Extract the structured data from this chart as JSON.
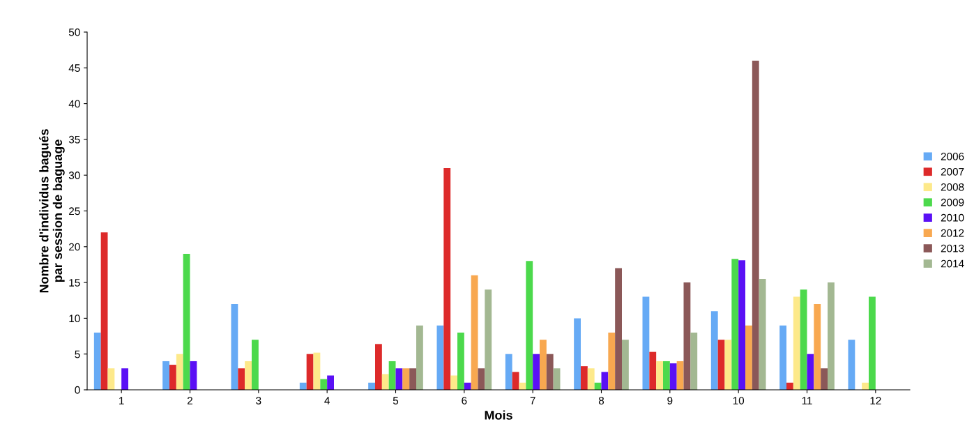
{
  "chart_data": {
    "type": "bar",
    "xlabel": "Mois",
    "ylabel": "Nombre d'individus bagués\npar session de baguage",
    "categories": [
      "1",
      "2",
      "3",
      "4",
      "5",
      "6",
      "7",
      "8",
      "9",
      "10",
      "11",
      "12"
    ],
    "ylim": [
      0,
      50
    ],
    "yticks": [
      0,
      5,
      10,
      15,
      20,
      25,
      30,
      35,
      40,
      45,
      50
    ],
    "grid": false,
    "legend": "right",
    "series": [
      {
        "name": "2006",
        "color": "#66aaf5",
        "values": [
          8,
          4,
          12,
          1,
          1,
          9,
          5,
          10,
          13,
          11,
          9,
          7
        ]
      },
      {
        "name": "2007",
        "color": "#dd2a2a",
        "values": [
          22,
          3.5,
          3,
          5,
          6.4,
          31,
          2.5,
          3.3,
          5.3,
          7,
          1,
          null
        ]
      },
      {
        "name": "2008",
        "color": "#fde98a",
        "values": [
          3,
          5,
          4,
          5.2,
          2.2,
          2,
          1,
          3,
          4,
          7,
          13,
          1
        ]
      },
      {
        "name": "2009",
        "color": "#4cd94c",
        "values": [
          null,
          19,
          7,
          1.5,
          4,
          8,
          18,
          1,
          4,
          18.3,
          14,
          13
        ]
      },
      {
        "name": "2010",
        "color": "#5a10f5",
        "values": [
          3,
          4,
          null,
          2,
          3,
          1,
          5,
          2.5,
          3.7,
          18.1,
          5,
          null
        ]
      },
      {
        "name": "2012",
        "color": "#f8a850",
        "values": [
          null,
          null,
          null,
          null,
          3,
          16,
          7,
          8,
          4,
          9,
          12,
          null
        ]
      },
      {
        "name": "2013",
        "color": "#8b5858",
        "values": [
          null,
          null,
          null,
          null,
          3,
          3,
          5,
          17,
          15,
          46,
          3,
          null
        ]
      },
      {
        "name": "2014",
        "color": "#a3b892",
        "values": [
          null,
          null,
          null,
          null,
          9,
          14,
          3,
          7,
          8,
          15.5,
          15,
          null
        ]
      }
    ]
  }
}
